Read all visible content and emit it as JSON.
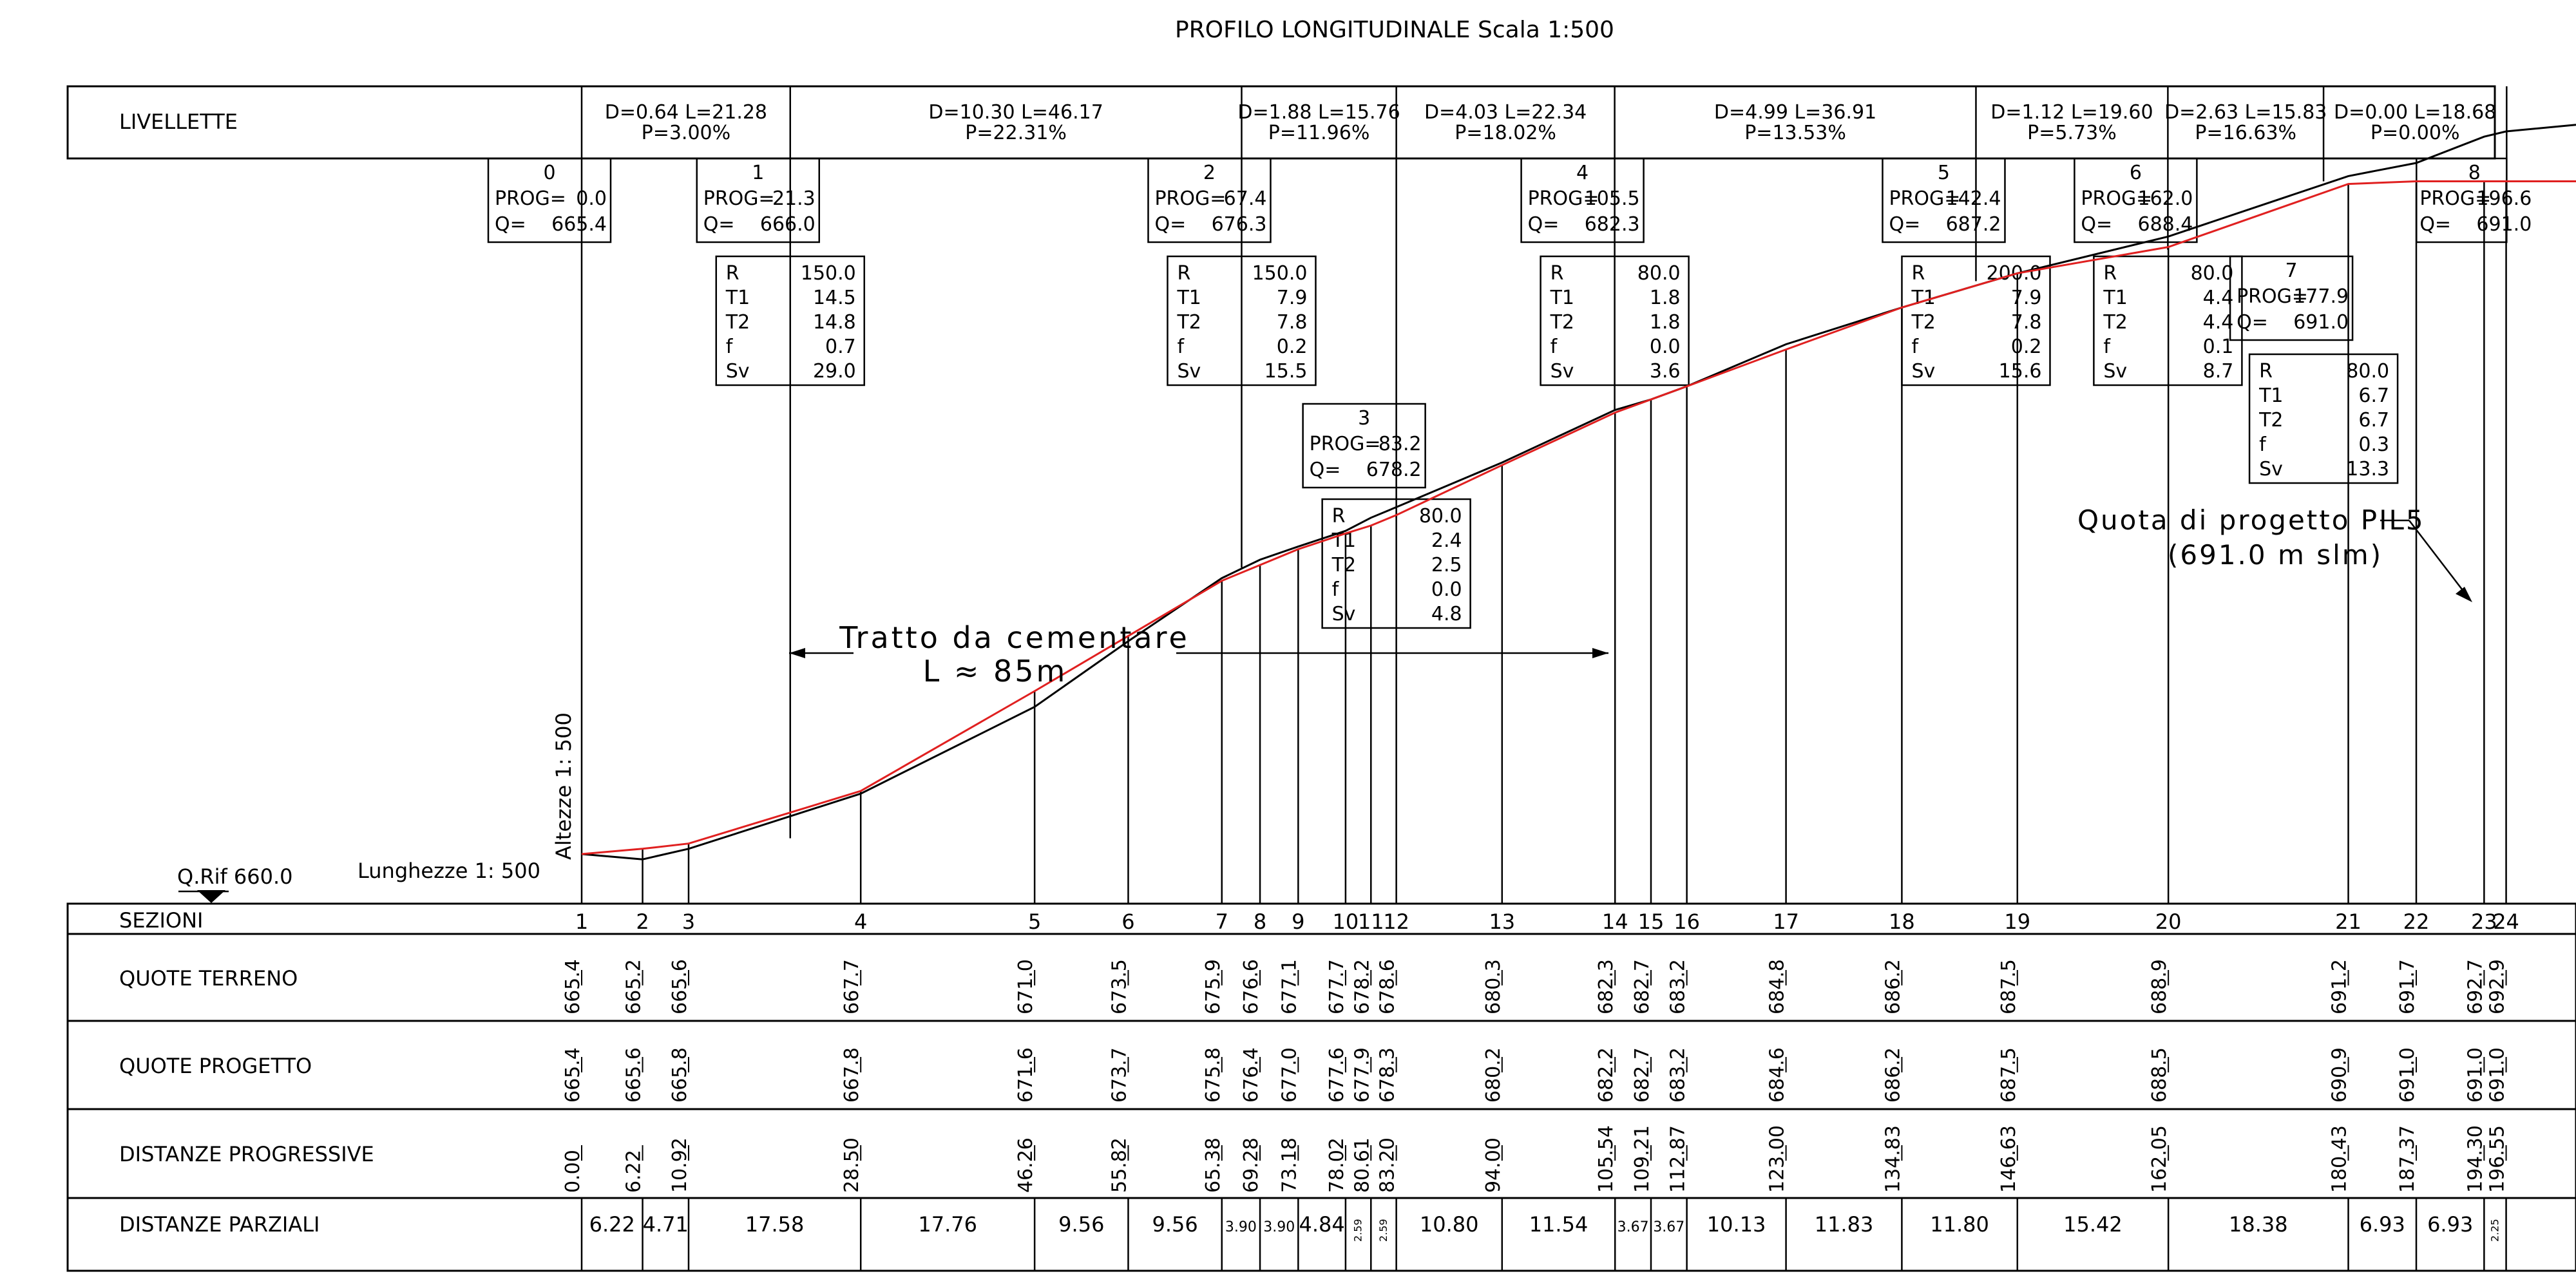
{
  "title": "PROFILO LONGITUDINALE Scala 1:500",
  "livellette_label": "LIVELLETTE",
  "livellette": [
    {
      "d": "D=0.64",
      "l": "L=21.28",
      "p": "P=3.00%"
    },
    {
      "d": "D=10.30",
      "l": "L=46.17",
      "p": "P=22.31%"
    },
    {
      "d": "D=1.88",
      "l": "L=15.76",
      "p": "P=11.96%"
    },
    {
      "d": "D=4.03",
      "l": "L=22.34",
      "p": "P=18.02%"
    },
    {
      "d": "D=4.99",
      "l": "L=36.91",
      "p": "P=13.53%"
    },
    {
      "d": "D=1.12",
      "l": "L=19.60",
      "p": "P=5.73%"
    },
    {
      "d": "D=2.63",
      "l": "L=15.83",
      "p": "P=16.63%"
    },
    {
      "d": "D=0.00",
      "l": "L=18.68",
      "p": "P=0.00%"
    }
  ],
  "vertices": [
    {
      "id": "0",
      "prog": "0.0",
      "q": "665.4"
    },
    {
      "id": "1",
      "prog": "21.3",
      "q": "666.0"
    },
    {
      "id": "2",
      "prog": "67.4",
      "q": "676.3"
    },
    {
      "id": "3",
      "prog": "83.2",
      "q": "678.2"
    },
    {
      "id": "4",
      "prog": "105.5",
      "q": "682.3"
    },
    {
      "id": "5",
      "prog": "142.4",
      "q": "687.2"
    },
    {
      "id": "6",
      "prog": "162.0",
      "q": "688.4"
    },
    {
      "id": "7",
      "prog": "177.9",
      "q": "691.0"
    },
    {
      "id": "8",
      "prog": "196.6",
      "q": "691.0"
    }
  ],
  "prog_label": "PROG=",
  "q_label": "Q=",
  "curve_labels": [
    "R",
    "T1",
    "T2",
    "f",
    "Sv"
  ],
  "curves": [
    {
      "vertex": "1",
      "values": [
        "150.0",
        "14.5",
        "14.8",
        "0.7",
        "29.0"
      ]
    },
    {
      "vertex": "2",
      "values": [
        "150.0",
        "7.9",
        "7.8",
        "0.2",
        "15.5"
      ]
    },
    {
      "vertex": "3",
      "values": [
        "80.0",
        "2.4",
        "2.5",
        "0.0",
        "4.8"
      ]
    },
    {
      "vertex": "4",
      "values": [
        "80.0",
        "1.8",
        "1.8",
        "0.0",
        "3.6"
      ]
    },
    {
      "vertex": "5",
      "values": [
        "200.0",
        "7.9",
        "7.8",
        "0.2",
        "15.6"
      ]
    },
    {
      "vertex": "6",
      "values": [
        "80.0",
        "4.4",
        "4.4",
        "0.1",
        "8.7"
      ]
    },
    {
      "vertex": "7",
      "values": [
        "80.0",
        "6.7",
        "6.7",
        "0.3",
        "13.3"
      ]
    }
  ],
  "annotations": {
    "tratto_line1": "Tratto da cementare",
    "tratto_line2": "L ≈ 85m",
    "quota_line1": "Quota di progetto PIL5",
    "quota_line2": "(691.0 m slm)",
    "altezze": "Altezze 1: 500",
    "lunghezze": "Lunghezze 1: 500",
    "qrif": "Q.Rif 660.0"
  },
  "rows": {
    "sezioni": "SEZIONI",
    "quote_terreno": "QUOTE TERRENO",
    "quote_progetto": "QUOTE PROGETTO",
    "distanze_progressive": "DISTANZE PROGRESSIVE",
    "distanze_parziali": "DISTANZE PARZIALI"
  },
  "sections": [
    {
      "n": "1",
      "prog": "0.00",
      "terreno": "665.4",
      "progetto": "665.4"
    },
    {
      "n": "2",
      "prog": "6.22",
      "terreno": "665.2",
      "progetto": "665.6"
    },
    {
      "n": "3",
      "prog": "10.92",
      "terreno": "665.6",
      "progetto": "665.8"
    },
    {
      "n": "4",
      "prog": "28.50",
      "terreno": "667.7",
      "progetto": "667.8"
    },
    {
      "n": "5",
      "prog": "46.26",
      "terreno": "671.0",
      "progetto": "671.6"
    },
    {
      "n": "6",
      "prog": "55.82",
      "terreno": "673.5",
      "progetto": "673.7"
    },
    {
      "n": "7",
      "prog": "65.38",
      "terreno": "675.9",
      "progetto": "675.8"
    },
    {
      "n": "8",
      "prog": "69.28",
      "terreno": "676.6",
      "progetto": "676.4"
    },
    {
      "n": "9",
      "prog": "73.18",
      "terreno": "677.1",
      "progetto": "677.0"
    },
    {
      "n": "10",
      "prog": "78.02",
      "terreno": "677.7",
      "progetto": "677.6"
    },
    {
      "n": "11",
      "prog": "80.61",
      "terreno": "678.2",
      "progetto": "677.9"
    },
    {
      "n": "12",
      "prog": "83.20",
      "terreno": "678.6",
      "progetto": "678.3"
    },
    {
      "n": "13",
      "prog": "94.00",
      "terreno": "680.3",
      "progetto": "680.2"
    },
    {
      "n": "14",
      "prog": "105.54",
      "terreno": "682.3",
      "progetto": "682.2"
    },
    {
      "n": "15",
      "prog": "109.21",
      "terreno": "682.7",
      "progetto": "682.7"
    },
    {
      "n": "16",
      "prog": "112.87",
      "terreno": "683.2",
      "progetto": "683.2"
    },
    {
      "n": "17",
      "prog": "123.00",
      "terreno": "684.8",
      "progetto": "684.6"
    },
    {
      "n": "18",
      "prog": "134.83",
      "terreno": "686.2",
      "progetto": "686.2"
    },
    {
      "n": "19",
      "prog": "146.63",
      "terreno": "687.5",
      "progetto": "687.5"
    },
    {
      "n": "20",
      "prog": "162.05",
      "terreno": "688.9",
      "progetto": "688.5"
    },
    {
      "n": "21",
      "prog": "180.43",
      "terreno": "691.2",
      "progetto": "690.9"
    },
    {
      "n": "22",
      "prog": "187.37",
      "terreno": "691.7",
      "progetto": "691.0"
    },
    {
      "n": "23",
      "prog": "194.30",
      "terreno": "692.7",
      "progetto": "691.0"
    },
    {
      "n": "24",
      "prog": "196.55",
      "terreno": "692.9",
      "progetto": "691.0"
    }
  ],
  "partials": [
    "6.22",
    "4.71",
    "17.58",
    "17.76",
    "9.56",
    "9.56",
    "3.90",
    "3.90",
    "4.84",
    "2.59",
    "2.59",
    "10.80",
    "11.54",
    "3.67",
    "3.67",
    "10.13",
    "11.83",
    "11.80",
    "15.42",
    "18.38",
    "6.93",
    "6.93",
    "2.25"
  ],
  "colors": {
    "line": "#000000",
    "project": "#e02020"
  }
}
